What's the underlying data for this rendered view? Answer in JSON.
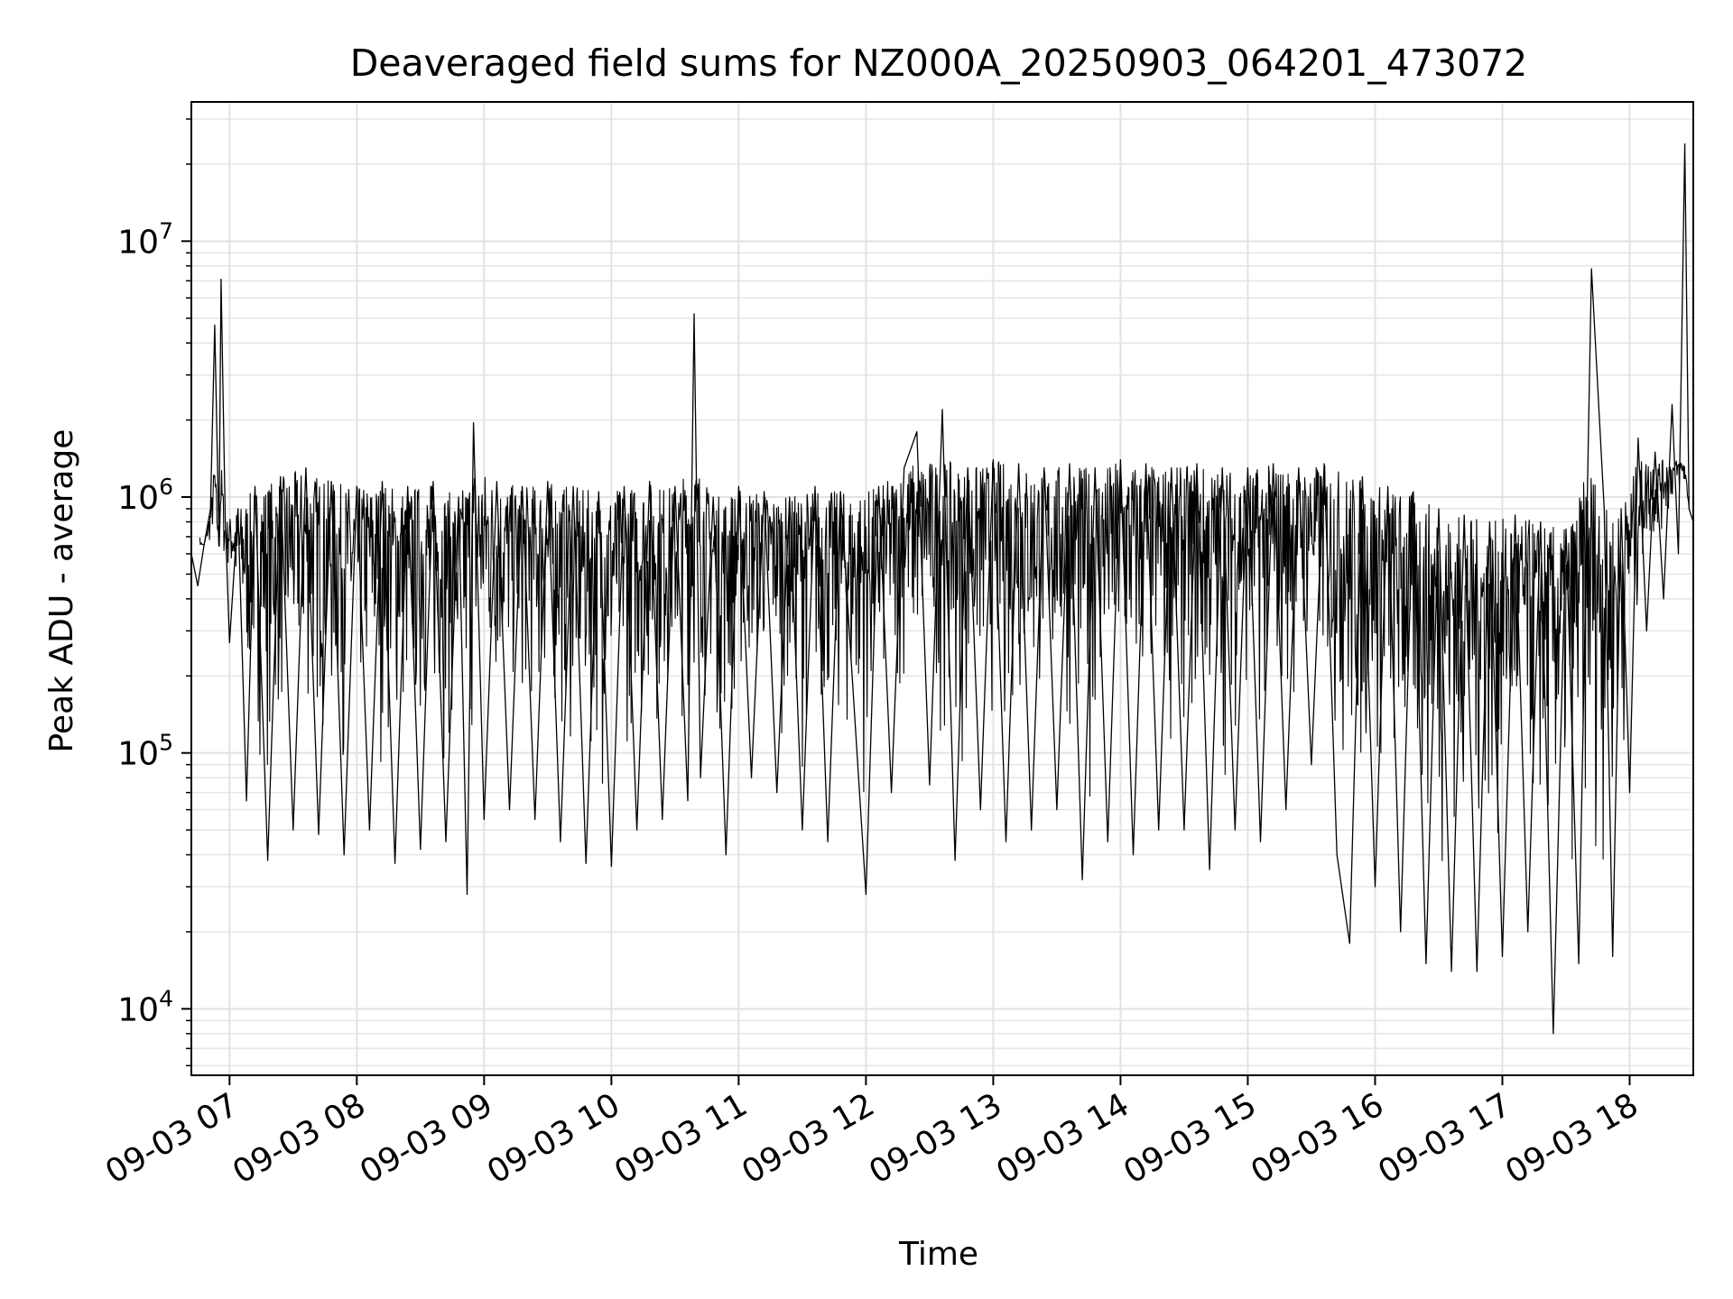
{
  "chart_data": {
    "type": "line",
    "title": "Deaveraged field sums for NZ000A_20250903_064201_473072",
    "xlabel": "Time",
    "ylabel": "Peak ADU - average",
    "yscale": "log",
    "ylim": [
      5500,
      35000000
    ],
    "xlim": [
      "2025-09-03 06:42",
      "2025-09-03 18:30"
    ],
    "grid": true,
    "line_color": "#000000",
    "x_tick_labels": [
      "09-03 07",
      "09-03 08",
      "09-03 09",
      "09-03 10",
      "09-03 11",
      "09-03 12",
      "09-03 13",
      "09-03 14",
      "09-03 15",
      "09-03 16",
      "09-03 17",
      "09-03 18"
    ],
    "x_tick_times": [
      "2025-09-03 07:00",
      "2025-09-03 08:00",
      "2025-09-03 09:00",
      "2025-09-03 10:00",
      "2025-09-03 11:00",
      "2025-09-03 12:00",
      "2025-09-03 13:00",
      "2025-09-03 14:00",
      "2025-09-03 15:00",
      "2025-09-03 16:00",
      "2025-09-03 17:00",
      "2025-09-03 18:00"
    ],
    "y_tick_labels": [
      {
        "base": "10",
        "exp": "4",
        "value": 10000
      },
      {
        "base": "10",
        "exp": "5",
        "value": 100000
      },
      {
        "base": "10",
        "exp": "6",
        "value": 1000000
      },
      {
        "base": "10",
        "exp": "7",
        "value": 10000000
      }
    ],
    "series": [
      {
        "values": [
          [
            "2025-09-03 06:42",
            600000
          ],
          [
            "2025-09-03 06:45",
            450000
          ],
          [
            "2025-09-03 06:48",
            650000
          ],
          [
            "2025-09-03 06:51",
            900000
          ],
          [
            "2025-09-03 06:53",
            4700000
          ],
          [
            "2025-09-03 06:55",
            700000
          ],
          [
            "2025-09-03 06:56",
            7100000
          ],
          [
            "2025-09-03 06:58",
            800000
          ],
          [
            "2025-09-03 07:00",
            270000
          ],
          [
            "2025-09-03 07:04",
            900000
          ],
          [
            "2025-09-03 07:08",
            65000
          ],
          [
            "2025-09-03 07:12",
            1100000
          ],
          [
            "2025-09-03 07:18",
            38000
          ],
          [
            "2025-09-03 07:24",
            1200000
          ],
          [
            "2025-09-03 07:30",
            50000
          ],
          [
            "2025-09-03 07:36",
            1300000
          ],
          [
            "2025-09-03 07:42",
            48000
          ],
          [
            "2025-09-03 07:48",
            1150000
          ],
          [
            "2025-09-03 07:54",
            40000
          ],
          [
            "2025-09-03 08:00",
            1100000
          ],
          [
            "2025-09-03 08:06",
            50000
          ],
          [
            "2025-09-03 08:12",
            1150000
          ],
          [
            "2025-09-03 08:18",
            37000
          ],
          [
            "2025-09-03 08:24",
            1100000
          ],
          [
            "2025-09-03 08:30",
            42000
          ],
          [
            "2025-09-03 08:36",
            1150000
          ],
          [
            "2025-09-03 08:42",
            45000
          ],
          [
            "2025-09-03 08:48",
            1000000
          ],
          [
            "2025-09-03 08:52",
            28000
          ],
          [
            "2025-09-03 08:55",
            1950000
          ],
          [
            "2025-09-03 09:00",
            55000
          ],
          [
            "2025-09-03 09:06",
            1150000
          ],
          [
            "2025-09-03 09:12",
            60000
          ],
          [
            "2025-09-03 09:18",
            1100000
          ],
          [
            "2025-09-03 09:24",
            55000
          ],
          [
            "2025-09-03 09:30",
            1150000
          ],
          [
            "2025-09-03 09:36",
            45000
          ],
          [
            "2025-09-03 09:42",
            1100000
          ],
          [
            "2025-09-03 09:48",
            37000
          ],
          [
            "2025-09-03 09:54",
            1050000
          ],
          [
            "2025-09-03 10:00",
            36000
          ],
          [
            "2025-09-03 10:06",
            1100000
          ],
          [
            "2025-09-03 10:12",
            50000
          ],
          [
            "2025-09-03 10:18",
            1150000
          ],
          [
            "2025-09-03 10:24",
            55000
          ],
          [
            "2025-09-03 10:30",
            1100000
          ],
          [
            "2025-09-03 10:36",
            65000
          ],
          [
            "2025-09-03 10:39",
            5200000
          ],
          [
            "2025-09-03 10:42",
            80000
          ],
          [
            "2025-09-03 10:48",
            1000000
          ],
          [
            "2025-09-03 10:54",
            40000
          ],
          [
            "2025-09-03 11:00",
            1100000
          ],
          [
            "2025-09-03 11:06",
            80000
          ],
          [
            "2025-09-03 11:12",
            1050000
          ],
          [
            "2025-09-03 11:18",
            70000
          ],
          [
            "2025-09-03 11:24",
            1000000
          ],
          [
            "2025-09-03 11:30",
            50000
          ],
          [
            "2025-09-03 11:36",
            1100000
          ],
          [
            "2025-09-03 11:42",
            45000
          ],
          [
            "2025-09-03 11:48",
            1050000
          ],
          [
            "2025-09-03 12:00",
            28000
          ],
          [
            "2025-09-03 12:06",
            1100000
          ],
          [
            "2025-09-03 12:12",
            70000
          ],
          [
            "2025-09-03 12:18",
            1300000
          ],
          [
            "2025-09-03 12:24",
            1800000
          ],
          [
            "2025-09-03 12:30",
            75000
          ],
          [
            "2025-09-03 12:36",
            2200000
          ],
          [
            "2025-09-03 12:42",
            38000
          ],
          [
            "2025-09-03 12:48",
            1300000
          ],
          [
            "2025-09-03 12:54",
            60000
          ],
          [
            "2025-09-03 13:00",
            1400000
          ],
          [
            "2025-09-03 13:06",
            45000
          ],
          [
            "2025-09-03 13:12",
            1350000
          ],
          [
            "2025-09-03 13:18",
            50000
          ],
          [
            "2025-09-03 13:24",
            1300000
          ],
          [
            "2025-09-03 13:30",
            60000
          ],
          [
            "2025-09-03 13:36",
            1350000
          ],
          [
            "2025-09-03 13:42",
            32000
          ],
          [
            "2025-09-03 13:48",
            1300000
          ],
          [
            "2025-09-03 13:54",
            45000
          ],
          [
            "2025-09-03 14:00",
            1400000
          ],
          [
            "2025-09-03 14:06",
            40000
          ],
          [
            "2025-09-03 14:12",
            1350000
          ],
          [
            "2025-09-03 14:18",
            50000
          ],
          [
            "2025-09-03 14:24",
            1300000
          ],
          [
            "2025-09-03 14:30",
            50000
          ],
          [
            "2025-09-03 14:36",
            1350000
          ],
          [
            "2025-09-03 14:42",
            35000
          ],
          [
            "2025-09-03 14:48",
            1300000
          ],
          [
            "2025-09-03 14:54",
            50000
          ],
          [
            "2025-09-03 15:00",
            1300000
          ],
          [
            "2025-09-03 15:06",
            45000
          ],
          [
            "2025-09-03 15:12",
            1350000
          ],
          [
            "2025-09-03 15:18",
            60000
          ],
          [
            "2025-09-03 15:24",
            1300000
          ],
          [
            "2025-09-03 15:30",
            90000
          ],
          [
            "2025-09-03 15:36",
            1350000
          ],
          [
            "2025-09-03 15:42",
            40000
          ],
          [
            "2025-09-03 15:48",
            18000
          ],
          [
            "2025-09-03 15:54",
            1200000
          ],
          [
            "2025-09-03 16:00",
            30000
          ],
          [
            "2025-09-03 16:06",
            1100000
          ],
          [
            "2025-09-03 16:12",
            20000
          ],
          [
            "2025-09-03 16:18",
            1050000
          ],
          [
            "2025-09-03 16:24",
            15000
          ],
          [
            "2025-09-03 16:30",
            900000
          ],
          [
            "2025-09-03 16:36",
            14000
          ],
          [
            "2025-09-03 16:42",
            850000
          ],
          [
            "2025-09-03 16:48",
            14000
          ],
          [
            "2025-09-03 16:54",
            800000
          ],
          [
            "2025-09-03 17:00",
            16000
          ],
          [
            "2025-09-03 17:06",
            850000
          ],
          [
            "2025-09-03 17:12",
            20000
          ],
          [
            "2025-09-03 17:18",
            800000
          ],
          [
            "2025-09-03 17:24",
            8000
          ],
          [
            "2025-09-03 17:30",
            750000
          ],
          [
            "2025-09-03 17:36",
            15000
          ],
          [
            "2025-09-03 17:42",
            7800000
          ],
          [
            "2025-09-03 17:48",
            900000
          ],
          [
            "2025-09-03 17:52",
            16000
          ],
          [
            "2025-09-03 17:56",
            900000
          ],
          [
            "2025-09-03 18:00",
            70000
          ],
          [
            "2025-09-03 18:04",
            1700000
          ],
          [
            "2025-09-03 18:08",
            300000
          ],
          [
            "2025-09-03 18:12",
            1500000
          ],
          [
            "2025-09-03 18:16",
            400000
          ],
          [
            "2025-09-03 18:20",
            2300000
          ],
          [
            "2025-09-03 18:23",
            600000
          ],
          [
            "2025-09-03 18:26",
            24000000
          ],
          [
            "2025-09-03 18:28",
            900000
          ],
          [
            "2025-09-03 18:30",
            800000
          ]
        ]
      }
    ]
  }
}
